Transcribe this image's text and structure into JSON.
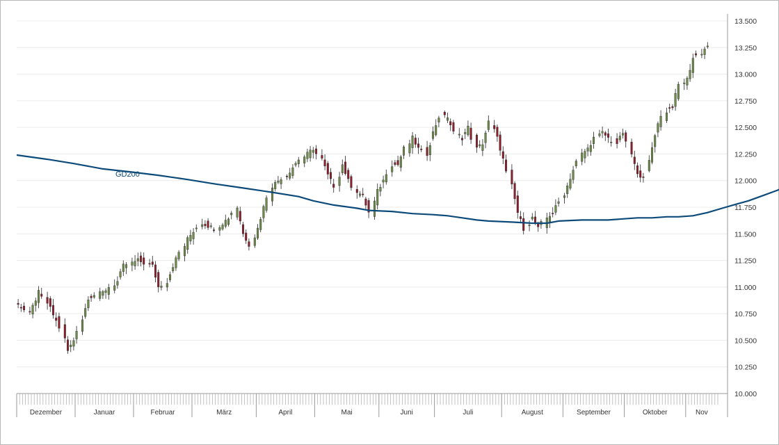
{
  "chart_data": {
    "type": "candlestick",
    "title": "",
    "ylim": [
      10000,
      13500
    ],
    "y_ticks": [
      "10.000",
      "10.250",
      "10.500",
      "10.750",
      "11.000",
      "11.250",
      "11.500",
      "11.750",
      "12.000",
      "12.250",
      "12.500",
      "12.750",
      "13.000",
      "13.250",
      "13.500"
    ],
    "y_tick_values": [
      10000,
      10250,
      10500,
      10750,
      11000,
      11250,
      11500,
      11750,
      12000,
      12250,
      12500,
      12750,
      13000,
      13250,
      13500
    ],
    "months": [
      {
        "label": "Dezember",
        "start": 0
      },
      {
        "label": "Januar",
        "start": 20
      },
      {
        "label": "Februar",
        "start": 40
      },
      {
        "label": "März",
        "start": 60
      },
      {
        "label": "April",
        "start": 82
      },
      {
        "label": "Mai",
        "start": 102
      },
      {
        "label": "Juni",
        "start": 124
      },
      {
        "label": "Juli",
        "start": 143
      },
      {
        "label": "August",
        "start": 166
      },
      {
        "label": "September",
        "start": 187
      },
      {
        "label": "Oktober",
        "start": 208
      },
      {
        "label": "Nov",
        "start": 229
      }
    ],
    "total_slots": 240,
    "bullish_color": "#6d8a4a",
    "bearish_color": "#8c1f2b",
    "ma_color": "#0c4a7a",
    "ma_label": "GD200",
    "ohlc": [],
    "ma200": [
      12240,
      12200,
      12160,
      12110,
      12080,
      12050,
      12010,
      11970,
      11930,
      11890,
      11850,
      11810,
      11770,
      11740,
      11720,
      11710,
      11690,
      11680,
      11670,
      11650,
      11630,
      11620,
      11610,
      11600,
      11600,
      11620,
      11630,
      11630,
      11630,
      11640,
      11650,
      11650,
      11660,
      11660,
      11670,
      11700,
      11740,
      11780,
      11810,
      11860,
      11910,
      11970,
      12030
    ],
    "ma200_x": [
      0,
      8,
      16,
      24,
      32,
      40,
      48,
      56,
      64,
      72,
      80,
      84,
      90,
      96,
      100,
      106,
      112,
      118,
      122,
      126,
      130,
      134,
      140,
      146,
      150,
      154,
      160,
      164,
      168,
      172,
      176,
      180,
      184,
      188,
      192,
      196,
      200,
      204,
      208,
      212,
      216,
      220,
      229
    ]
  }
}
